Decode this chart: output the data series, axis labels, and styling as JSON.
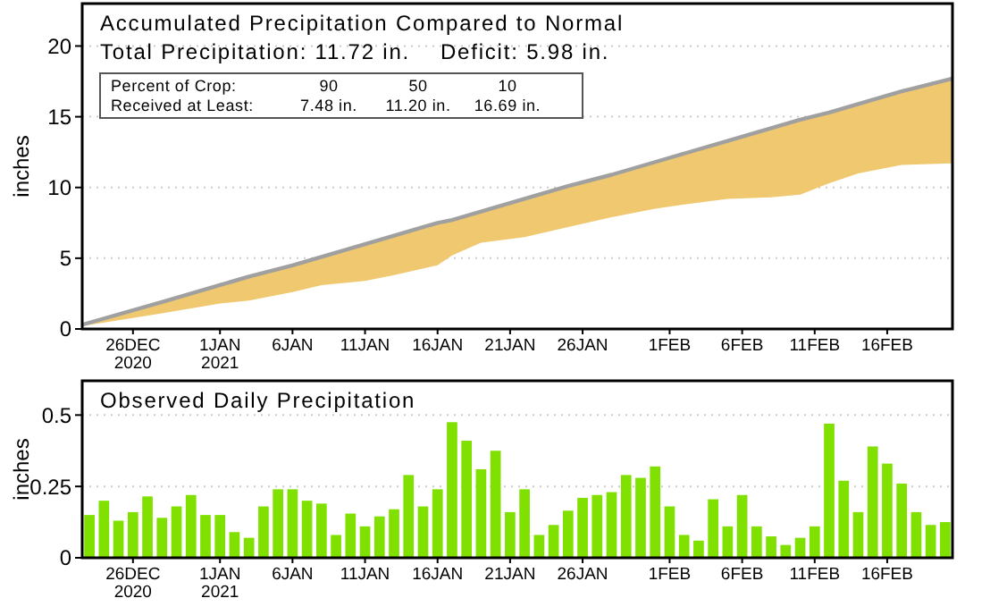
{
  "chart_data": [
    {
      "type": "line",
      "title": "Accumulated Precipitation Compared to Normal",
      "subtitle": "Total Precipitation: 11.72 in.    Deficit: 5.98 in.",
      "ylabel": "inches",
      "annotations": [
        "Percent of Crop:",
        "90",
        "50",
        "10",
        "Received at Least:",
        "7.48 in.",
        "11.20 in.",
        "16.69 in."
      ],
      "xlim": [
        "2020-12-22T12:00",
        "2021-02-20T12:00"
      ],
      "xticks": [
        {
          "value": "2020-12-26",
          "label": "26DEC\n2020"
        },
        {
          "value": "2021-01-01",
          "label": "1JAN\n2021"
        },
        {
          "value": "2021-01-06",
          "label": "6JAN"
        },
        {
          "value": "2021-01-11",
          "label": "11JAN"
        },
        {
          "value": "2021-01-16",
          "label": "16JAN"
        },
        {
          "value": "2021-01-21",
          "label": "21JAN"
        },
        {
          "value": "2021-01-26",
          "label": "26JAN"
        },
        {
          "value": "2021-02-01",
          "label": "1FEB"
        },
        {
          "value": "2021-02-06",
          "label": "6FEB"
        },
        {
          "value": "2021-02-11",
          "label": "11FEB"
        },
        {
          "value": "2021-02-16",
          "label": "16FEB"
        }
      ],
      "ylim": [
        0,
        23
      ],
      "yticks": [
        0,
        5,
        10,
        15,
        20
      ],
      "grid": "y",
      "x": [
        "2020-12-22T12:00",
        "2020-12-28",
        "2021-01-01",
        "2021-01-03",
        "2021-01-06",
        "2021-01-08",
        "2021-01-11",
        "2021-01-13",
        "2021-01-16",
        "2021-01-17",
        "2021-01-19",
        "2021-01-22",
        "2021-01-25",
        "2021-01-28",
        "2021-01-31",
        "2021-02-02",
        "2021-02-05",
        "2021-02-08",
        "2021-02-10",
        "2021-02-12",
        "2021-02-14",
        "2021-02-17",
        "2021-02-20T12:00"
      ],
      "series": [
        {
          "color": "#a0a0a0",
          "values": [
            0.3,
            1.9,
            3.1,
            3.7,
            4.5,
            5.1,
            6.0,
            6.6,
            7.5,
            7.7,
            8.3,
            9.2,
            10.1,
            10.9,
            11.8,
            12.4,
            13.3,
            14.2,
            14.8,
            15.3,
            15.9,
            16.8,
            17.7
          ],
          "lower": [
            0.2,
            1.1,
            1.8,
            2.0,
            2.6,
            3.1,
            3.4,
            3.8,
            4.5,
            5.2,
            6.1,
            6.5,
            7.2,
            7.9,
            8.5,
            8.8,
            9.2,
            9.3,
            9.5,
            10.3,
            11.0,
            11.6,
            11.7
          ],
          "upper": [
            0.3,
            1.9,
            3.1,
            3.7,
            4.5,
            5.1,
            6.0,
            6.6,
            7.5,
            7.7,
            8.3,
            9.2,
            10.1,
            10.9,
            11.8,
            12.4,
            13.3,
            14.2,
            14.8,
            15.3,
            15.9,
            16.8,
            17.7
          ]
        }
      ]
    },
    {
      "type": "bar",
      "title": "Observed Daily Precipitation",
      "ylabel": "inches",
      "color": "#80e000",
      "xlim": [
        "2020-12-22T12:00",
        "2021-02-20T12:00"
      ],
      "xticks": [
        {
          "value": "2020-12-26",
          "label": "26DEC\n2020"
        },
        {
          "value": "2021-01-01",
          "label": "1JAN\n2021"
        },
        {
          "value": "2021-01-06",
          "label": "6JAN"
        },
        {
          "value": "2021-01-11",
          "label": "11JAN"
        },
        {
          "value": "2021-01-16",
          "label": "16JAN"
        },
        {
          "value": "2021-01-21",
          "label": "21JAN"
        },
        {
          "value": "2021-01-26",
          "label": "26JAN"
        },
        {
          "value": "2021-02-01",
          "label": "1FEB"
        },
        {
          "value": "2021-02-06",
          "label": "6FEB"
        },
        {
          "value": "2021-02-11",
          "label": "11FEB"
        },
        {
          "value": "2021-02-16",
          "label": "16FEB"
        }
      ],
      "ylim": [
        0,
        0.62
      ],
      "yticks": [
        0,
        0.25,
        0.5
      ],
      "grid": "y",
      "x": [
        "2020-12-23",
        "2020-12-24",
        "2020-12-25",
        "2020-12-26",
        "2020-12-27",
        "2020-12-28",
        "2020-12-29",
        "2020-12-30",
        "2020-12-31",
        "2021-01-01",
        "2021-01-02",
        "2021-01-03",
        "2021-01-04",
        "2021-01-05",
        "2021-01-06",
        "2021-01-07",
        "2021-01-08",
        "2021-01-09",
        "2021-01-10",
        "2021-01-11",
        "2021-01-12",
        "2021-01-13",
        "2021-01-14",
        "2021-01-15",
        "2021-01-16",
        "2021-01-17",
        "2021-01-18",
        "2021-01-19",
        "2021-01-20",
        "2021-01-21",
        "2021-01-22",
        "2021-01-23",
        "2021-01-24",
        "2021-01-25",
        "2021-01-26",
        "2021-01-27",
        "2021-01-28",
        "2021-01-29",
        "2021-01-30",
        "2021-01-31",
        "2021-02-01",
        "2021-02-02",
        "2021-02-03",
        "2021-02-04",
        "2021-02-05",
        "2021-02-06",
        "2021-02-07",
        "2021-02-08",
        "2021-02-09",
        "2021-02-10",
        "2021-02-11",
        "2021-02-12",
        "2021-02-13",
        "2021-02-14",
        "2021-02-15",
        "2021-02-16",
        "2021-02-17",
        "2021-02-18",
        "2021-02-19",
        "2021-02-20"
      ],
      "values": [
        0.15,
        0.2,
        0.13,
        0.16,
        0.215,
        0.14,
        0.18,
        0.22,
        0.15,
        0.15,
        0.09,
        0.07,
        0.18,
        0.24,
        0.24,
        0.2,
        0.19,
        0.08,
        0.155,
        0.11,
        0.145,
        0.17,
        0.29,
        0.18,
        0.24,
        0.475,
        0.41,
        0.31,
        0.375,
        0.16,
        0.24,
        0.08,
        0.115,
        0.165,
        0.21,
        0.22,
        0.23,
        0.29,
        0.28,
        0.32,
        0.18,
        0.08,
        0.06,
        0.205,
        0.11,
        0.22,
        0.11,
        0.075,
        0.045,
        0.07,
        0.11,
        0.47,
        0.27,
        0.16,
        0.39,
        0.33,
        0.26,
        0.16,
        0.115,
        0.125
      ]
    }
  ]
}
